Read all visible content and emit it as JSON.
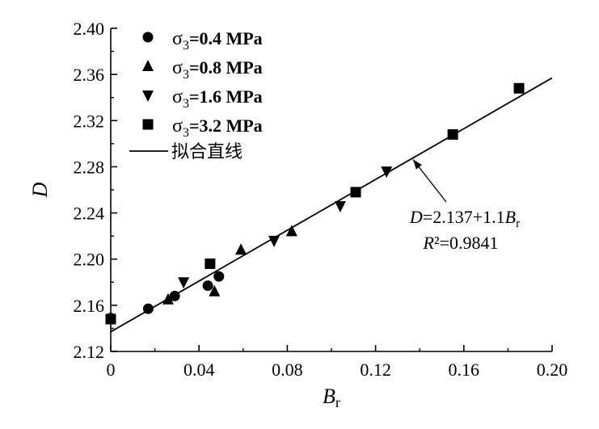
{
  "chart_data": {
    "type": "scatter",
    "xlabel": "B_r",
    "ylabel": "D",
    "xlim": [
      0,
      0.2
    ],
    "ylim": [
      2.12,
      2.4
    ],
    "x_ticks": [
      "0",
      "0.04",
      "0.08",
      "0.12",
      "0.16",
      "0.20"
    ],
    "y_ticks": [
      "2.12",
      "2.16",
      "2.20",
      "2.24",
      "2.28",
      "2.32",
      "2.36",
      "2.40"
    ],
    "series": [
      {
        "name": "σ3=0.4 MPa",
        "marker": "circle",
        "points": [
          [
            0.0,
            2.149
          ],
          [
            0.017,
            2.157
          ],
          [
            0.029,
            2.168
          ],
          [
            0.044,
            2.177
          ],
          [
            0.049,
            2.185
          ]
        ]
      },
      {
        "name": "σ3=0.8 MPa",
        "marker": "triangle-up",
        "points": [
          [
            0.026,
            2.165
          ],
          [
            0.047,
            2.172
          ],
          [
            0.059,
            2.208
          ],
          [
            0.082,
            2.224
          ]
        ]
      },
      {
        "name": "σ3=1.6 MPa",
        "marker": "triangle-down",
        "points": [
          [
            0.033,
            2.18
          ],
          [
            0.074,
            2.216
          ],
          [
            0.104,
            2.246
          ],
          [
            0.125,
            2.276
          ]
        ]
      },
      {
        "name": "σ3=3.2 MPa",
        "marker": "square",
        "points": [
          [
            0.0,
            2.148
          ],
          [
            0.045,
            2.196
          ],
          [
            0.111,
            2.258
          ],
          [
            0.155,
            2.308
          ],
          [
            0.185,
            2.348
          ]
        ]
      }
    ],
    "fit": {
      "name": "拟合直线",
      "intercept": 2.137,
      "slope": 1.1,
      "x_range": [
        0,
        0.2
      ]
    },
    "legend_position": "top-left",
    "annotation": {
      "equation": "D=2.137+1.1B_r",
      "r2": "R²=0.9841"
    }
  }
}
